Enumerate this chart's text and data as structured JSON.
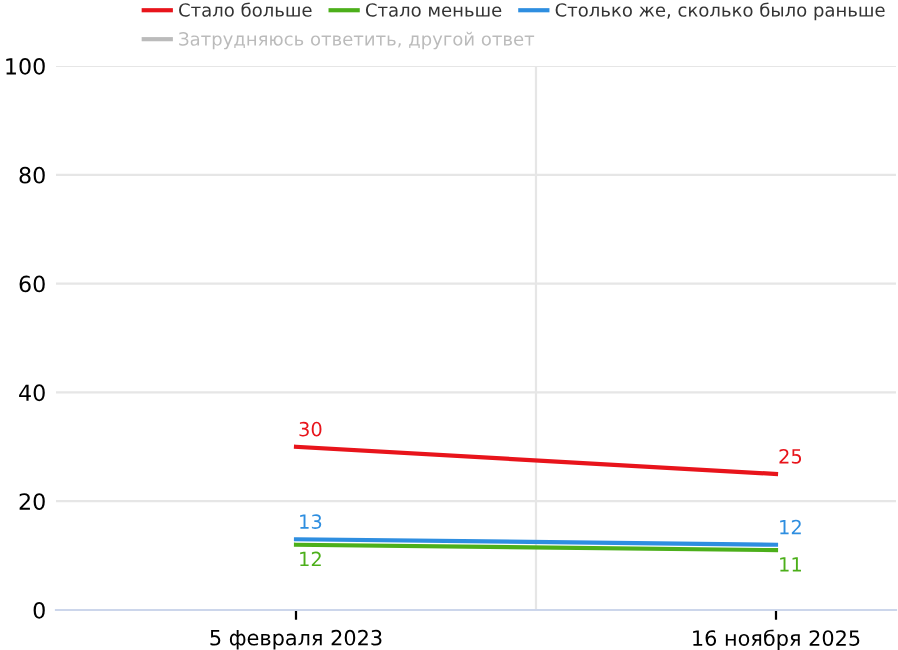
{
  "chart_data": {
    "type": "line",
    "categories": [
      "5 февраля 2023",
      "16 ноября 2025"
    ],
    "series": [
      {
        "name": "Стало больше",
        "color": "#e8141b",
        "values": [
          30,
          25
        ]
      },
      {
        "name": "Стало меньше",
        "color": "#4caf1a",
        "values": [
          12,
          11
        ]
      },
      {
        "name": "Столько же, сколько было раньше",
        "color": "#2e8ee0",
        "values": [
          13,
          12
        ]
      },
      {
        "name": "Затрудняюсь ответить, другой ответ",
        "color": "#bbbbbb",
        "values": [
          null,
          null
        ]
      }
    ],
    "ylim": [
      0,
      100
    ],
    "yticks": [
      0,
      20,
      40,
      60,
      80,
      100
    ],
    "grid": true,
    "legend": "top",
    "data_labels": true,
    "marker": "none",
    "line_style": "solid"
  }
}
